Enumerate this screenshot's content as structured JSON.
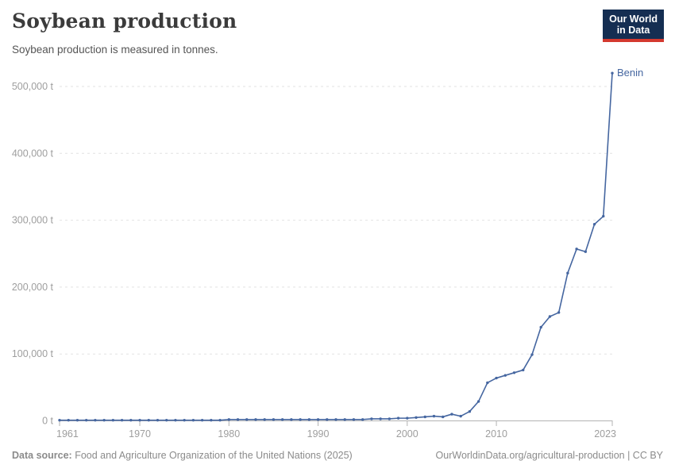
{
  "logo": {
    "line1": "Our World",
    "line2": "in Data",
    "bg_color": "#152e52",
    "accent_color": "#d4392f"
  },
  "footer": {
    "source_label": "Data source:",
    "source_text": " Food and Agriculture Organization of the United Nations (2025)",
    "link_text": "OurWorldinData.org/agricultural-production | CC BY"
  },
  "chart_data": {
    "type": "line",
    "title": "Soybean production",
    "subtitle": "Soybean production is measured in tonnes.",
    "unit": "tonnes",
    "grid": "horizontal dashed",
    "legend_position": "end-of-line label",
    "end_label": "Benin",
    "xlim": [
      1961,
      2023
    ],
    "ylim": [
      0,
      530000
    ],
    "x_ticks": [
      {
        "value": 1961,
        "label": "1961"
      },
      {
        "value": 1970,
        "label": "1970"
      },
      {
        "value": 1980,
        "label": "1980"
      },
      {
        "value": 1990,
        "label": "1990"
      },
      {
        "value": 2000,
        "label": "2000"
      },
      {
        "value": 2010,
        "label": "2010"
      },
      {
        "value": 2023,
        "label": "2023"
      }
    ],
    "y_ticks": [
      {
        "value": 0,
        "label": "0 t"
      },
      {
        "value": 100000,
        "label": "100,000 t"
      },
      {
        "value": 200000,
        "label": "200,000 t"
      },
      {
        "value": 300000,
        "label": "300,000 t"
      },
      {
        "value": 400000,
        "label": "400,000 t"
      },
      {
        "value": 500000,
        "label": "500,000 t"
      }
    ],
    "x": [
      1961,
      1962,
      1963,
      1964,
      1965,
      1966,
      1967,
      1968,
      1969,
      1970,
      1971,
      1972,
      1973,
      1974,
      1975,
      1976,
      1977,
      1978,
      1979,
      1980,
      1981,
      1982,
      1983,
      1984,
      1985,
      1986,
      1987,
      1988,
      1989,
      1990,
      1991,
      1992,
      1993,
      1994,
      1995,
      1996,
      1997,
      1998,
      1999,
      2000,
      2001,
      2002,
      2003,
      2004,
      2005,
      2006,
      2007,
      2008,
      2009,
      2010,
      2011,
      2012,
      2013,
      2014,
      2015,
      2016,
      2017,
      2018,
      2019,
      2020,
      2021,
      2022,
      2023
    ],
    "series": [
      {
        "name": "Benin",
        "color": "#4566a0",
        "values": [
          1000,
          1000,
          1000,
          1000,
          1000,
          1000,
          1000,
          1000,
          1000,
          1000,
          1000,
          1000,
          1000,
          1000,
          1000,
          1000,
          1000,
          1000,
          1000,
          2000,
          2000,
          2000,
          2000,
          2000,
          2000,
          2000,
          2000,
          2000,
          2000,
          2000,
          2000,
          2000,
          2000,
          2000,
          2000,
          3000,
          3000,
          3000,
          4000,
          4000,
          5000,
          6000,
          7000,
          6000,
          10000,
          7000,
          14000,
          29000,
          57000,
          64000,
          68000,
          72000,
          76000,
          99000,
          140000,
          156000,
          162000,
          221000,
          257000,
          253000,
          294000,
          306000,
          520000
        ]
      }
    ]
  }
}
